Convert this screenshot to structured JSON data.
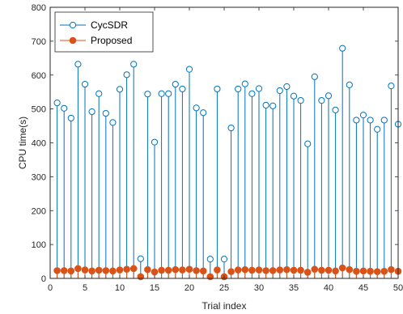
{
  "chart_data": {
    "type": "stem",
    "xlabel": "Trial index",
    "ylabel": "CPU time(s)",
    "xlim": [
      0,
      50
    ],
    "ylim": [
      0,
      800
    ],
    "xticks": [
      0,
      5,
      10,
      15,
      20,
      25,
      30,
      35,
      40,
      45,
      50
    ],
    "yticks": [
      0,
      100,
      200,
      300,
      400,
      500,
      600,
      700,
      800
    ],
    "legend_position": "top-left",
    "x": [
      1,
      2,
      3,
      4,
      5,
      6,
      7,
      8,
      9,
      10,
      11,
      12,
      13,
      14,
      15,
      16,
      17,
      18,
      19,
      20,
      21,
      22,
      23,
      24,
      25,
      26,
      27,
      28,
      29,
      30,
      31,
      32,
      33,
      34,
      35,
      36,
      37,
      38,
      39,
      40,
      41,
      42,
      43,
      44,
      45,
      46,
      47,
      48,
      49,
      50
    ],
    "series": [
      {
        "name": "CycSDR",
        "color": "#0072BD",
        "marker": "open-circle",
        "values": [
          518,
          502,
          473,
          632,
          573,
          492,
          545,
          487,
          460,
          558,
          601,
          632,
          58,
          544,
          402,
          545,
          545,
          573,
          559,
          617,
          503,
          489,
          57,
          559,
          57,
          444,
          559,
          574,
          545,
          560,
          511,
          509,
          554,
          566,
          538,
          525,
          397,
          595,
          525,
          539,
          497,
          679,
          571,
          467,
          482,
          467,
          440,
          467,
          568,
          455
        ]
      },
      {
        "name": "Proposed",
        "color": "#D95319",
        "marker": "filled-circle",
        "values": [
          23,
          23,
          22,
          29,
          25,
          22,
          24,
          23,
          22,
          25,
          27,
          29,
          5,
          26,
          19,
          24,
          24,
          26,
          25,
          27,
          23,
          22,
          5,
          25,
          5,
          20,
          25,
          26,
          24,
          25,
          23,
          23,
          25,
          26,
          24,
          24,
          18,
          27,
          24,
          24,
          22,
          31,
          26,
          21,
          22,
          21,
          20,
          21,
          26,
          21
        ]
      }
    ]
  }
}
